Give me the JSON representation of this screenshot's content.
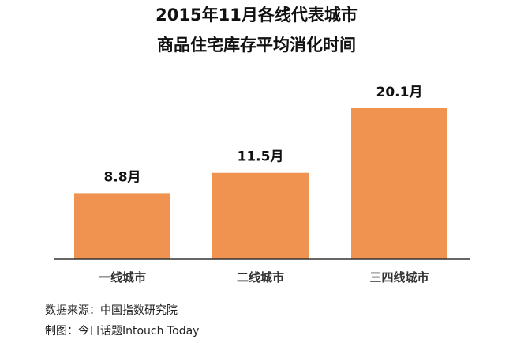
{
  "chart_data": {
    "type": "bar",
    "title_line1": "2015年11月各线代表城市",
    "title_line2": "商品住宅库存平均消化时间",
    "categories": [
      "一线城市",
      "二线城市",
      "三四线城市"
    ],
    "values": [
      8.8,
      11.5,
      20.1
    ],
    "value_labels": [
      "8.8月",
      "11.5月",
      "20.1月"
    ],
    "ylim": [
      0,
      20.1
    ],
    "grid": false,
    "bar_color": "#F09351"
  },
  "footer": {
    "source": "数据来源：中国指数研究院",
    "credit": "制图：今日话题Intouch Today"
  }
}
